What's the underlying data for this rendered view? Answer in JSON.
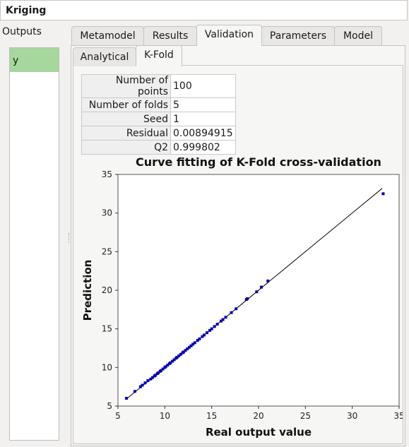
{
  "window": {
    "title": "Kriging"
  },
  "outputs": {
    "label": "Outputs",
    "items": [
      "y"
    ]
  },
  "tabs": [
    "Metamodel",
    "Results",
    "Validation",
    "Parameters",
    "Model"
  ],
  "subtabs": [
    "Analytical",
    "K-Fold"
  ],
  "stats": [
    {
      "label": "Number of points",
      "value": "100"
    },
    {
      "label": "Number of folds",
      "value": "5"
    },
    {
      "label": "Seed",
      "value": "1"
    },
    {
      "label": "Residual",
      "value": "0.00894915"
    },
    {
      "label": "Q2",
      "value": "0.999802"
    }
  ],
  "chart_data": {
    "type": "scatter",
    "title": "Curve fitting of K-Fold cross-validation",
    "xlabel": "Real output value",
    "ylabel": "Prediction",
    "xlim": [
      5,
      35
    ],
    "ylim": [
      5,
      35
    ],
    "x_ticks": [
      "5",
      "10",
      "15",
      "20",
      "25",
      "30",
      "35"
    ],
    "y_ticks": [
      "5",
      "10",
      "15",
      "20",
      "25",
      "30",
      "35"
    ],
    "grid": false,
    "point_color": "#0000aa",
    "line_color": "#000000",
    "fit_line": {
      "x": [
        5.9,
        33.2
      ],
      "y": [
        5.9,
        33.2
      ]
    },
    "points": [
      [
        5.9,
        6.0
      ],
      [
        6.8,
        6.9
      ],
      [
        7.4,
        7.5
      ],
      [
        7.6,
        7.7
      ],
      [
        7.9,
        8.0
      ],
      [
        8.2,
        8.3
      ],
      [
        8.5,
        8.5
      ],
      [
        8.7,
        8.7
      ],
      [
        8.9,
        8.9
      ],
      [
        9.0,
        9.0
      ],
      [
        9.2,
        9.2
      ],
      [
        9.3,
        9.3
      ],
      [
        9.5,
        9.5
      ],
      [
        9.6,
        9.6
      ],
      [
        9.8,
        9.8
      ],
      [
        10.0,
        10.0
      ],
      [
        10.1,
        10.1
      ],
      [
        10.3,
        10.3
      ],
      [
        10.5,
        10.5
      ],
      [
        10.6,
        10.6
      ],
      [
        10.8,
        10.8
      ],
      [
        11.0,
        11.0
      ],
      [
        11.2,
        11.2
      ],
      [
        11.3,
        11.3
      ],
      [
        11.5,
        11.5
      ],
      [
        11.7,
        11.7
      ],
      [
        11.9,
        11.9
      ],
      [
        12.0,
        12.0
      ],
      [
        12.2,
        12.2
      ],
      [
        12.4,
        12.4
      ],
      [
        12.6,
        12.6
      ],
      [
        12.8,
        12.8
      ],
      [
        13.0,
        13.0
      ],
      [
        13.2,
        13.2
      ],
      [
        13.5,
        13.5
      ],
      [
        13.7,
        13.7
      ],
      [
        14.0,
        14.0
      ],
      [
        14.2,
        14.2
      ],
      [
        14.5,
        14.5
      ],
      [
        14.8,
        14.8
      ],
      [
        15.0,
        15.0
      ],
      [
        15.3,
        15.3
      ],
      [
        15.6,
        15.6
      ],
      [
        16.0,
        16.0
      ],
      [
        16.2,
        16.2
      ],
      [
        16.5,
        16.5
      ],
      [
        17.1,
        17.1
      ],
      [
        17.6,
        17.6
      ],
      [
        18.7,
        18.8
      ],
      [
        18.8,
        18.9
      ],
      [
        19.8,
        19.8
      ],
      [
        20.3,
        20.4
      ],
      [
        21.0,
        21.2
      ],
      [
        33.3,
        32.5
      ]
    ]
  }
}
